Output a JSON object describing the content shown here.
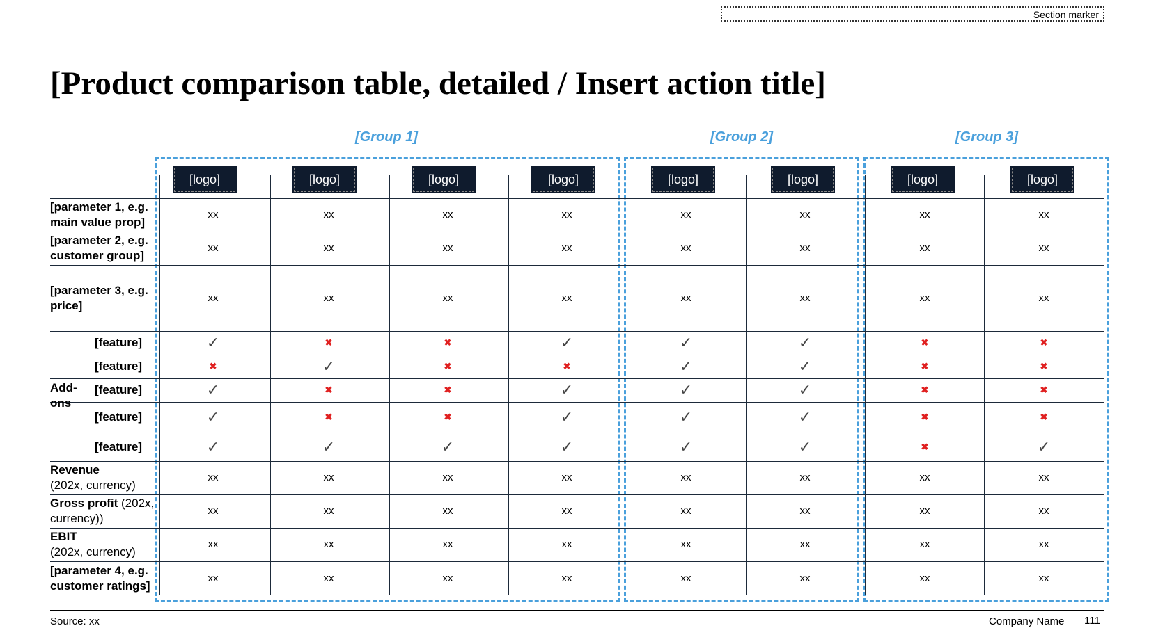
{
  "section_marker": "Section marker",
  "title": "[Product comparison table, detailed / Insert action title]",
  "groups": [
    "[Group 1]",
    "[Group 2]",
    "[Group 3]"
  ],
  "logo_label": "[logo]",
  "rows": [
    {
      "label_bold": "[parameter 1, e.g. main value prop]",
      "label_normal": "",
      "values": [
        "xx",
        "xx",
        "xx",
        "xx",
        "xx",
        "xx",
        "xx",
        "xx"
      ]
    },
    {
      "label_bold": "[parameter 2, e.g. customer group]",
      "label_normal": "",
      "values": [
        "xx",
        "xx",
        "xx",
        "xx",
        "xx",
        "xx",
        "xx",
        "xx"
      ]
    },
    {
      "label_bold": "[parameter 3, e.g. price]",
      "label_normal": "",
      "values": [
        "xx",
        "xx",
        "xx",
        "xx",
        "xx",
        "xx",
        "xx",
        "xx"
      ]
    }
  ],
  "addons": {
    "label": "Add-ons",
    "features": [
      {
        "name": "[feature]",
        "marks": [
          "check",
          "cross",
          "cross",
          "check",
          "check",
          "check",
          "cross",
          "cross"
        ]
      },
      {
        "name": "[feature]",
        "marks": [
          "cross",
          "check",
          "cross",
          "cross",
          "check",
          "check",
          "cross",
          "cross"
        ]
      },
      {
        "name": "[feature]",
        "marks": [
          "check",
          "cross",
          "cross",
          "check",
          "check",
          "check",
          "cross",
          "cross"
        ]
      },
      {
        "name": "[feature]",
        "marks": [
          "check",
          "cross",
          "cross",
          "check",
          "check",
          "check",
          "cross",
          "cross"
        ]
      },
      {
        "name": "[feature]",
        "marks": [
          "check",
          "check",
          "check",
          "check",
          "check",
          "check",
          "cross",
          "check"
        ]
      }
    ]
  },
  "bottom_rows": [
    {
      "label_bold": "Revenue",
      "label_normal": "(202x, currency)",
      "values": [
        "xx",
        "xx",
        "xx",
        "xx",
        "xx",
        "xx",
        "xx",
        "xx"
      ]
    },
    {
      "label_bold": "Gross profit",
      "label_normal": " (202x, currency))",
      "values": [
        "xx",
        "xx",
        "xx",
        "xx",
        "xx",
        "xx",
        "xx",
        "xx"
      ]
    },
    {
      "label_bold": "EBIT",
      "label_normal": "(202x, currency)",
      "values": [
        "xx",
        "xx",
        "xx",
        "xx",
        "xx",
        "xx",
        "xx",
        "xx"
      ]
    },
    {
      "label_bold": "[parameter 4, e.g. customer ratings]",
      "label_normal": "",
      "values": [
        "xx",
        "xx",
        "xx",
        "xx",
        "xx",
        "xx",
        "xx",
        "xx"
      ]
    }
  ],
  "footer": {
    "source": "Source: xx",
    "company": "Company Name",
    "page": "111"
  },
  "colors": {
    "accent": "#4aa0dc",
    "logo_bg": "#0f1b2d",
    "cross": "#e02020",
    "check": "#444444"
  }
}
